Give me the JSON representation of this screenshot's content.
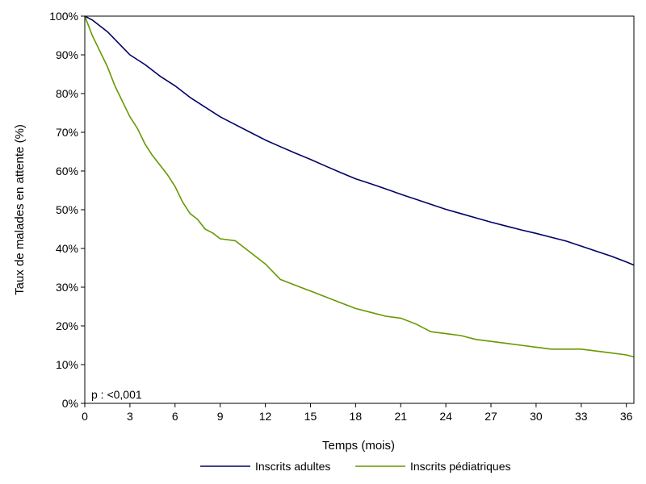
{
  "chart_data": {
    "type": "line",
    "title": "",
    "xlabel": "Temps (mois)",
    "ylabel": "Taux de malades en attente (%)",
    "xlim": [
      0,
      36.5
    ],
    "ylim": [
      0,
      100
    ],
    "xticks": [
      0,
      3,
      6,
      9,
      12,
      15,
      18,
      21,
      24,
      27,
      30,
      33,
      36
    ],
    "yticks": [
      0,
      10,
      20,
      30,
      40,
      50,
      60,
      70,
      80,
      90,
      100
    ],
    "xtick_labels": [
      "0",
      "3",
      "6",
      "9",
      "12",
      "15",
      "18",
      "21",
      "24",
      "27",
      "30",
      "33",
      "36"
    ],
    "ytick_labels": [
      "0%",
      "10%",
      "20%",
      "30%",
      "40%",
      "50%",
      "60%",
      "70%",
      "80%",
      "90%",
      "100%"
    ],
    "grid": false,
    "legend_position": "bottom",
    "annotation": "p : <0,001",
    "series": [
      {
        "name": "Inscrits adultes",
        "color": "#000066",
        "x": [
          0,
          0.5,
          1,
          1.5,
          2,
          2.5,
          3,
          4,
          5,
          6,
          7,
          8,
          9,
          10,
          11,
          12,
          13,
          14,
          15,
          16,
          17,
          18,
          19,
          20,
          21,
          22,
          23,
          24,
          25,
          26,
          27,
          28,
          29,
          30,
          31,
          32,
          33,
          34,
          35,
          36,
          36.5
        ],
        "y": [
          100,
          99,
          97.5,
          96,
          94,
          92,
          90,
          87.5,
          84.5,
          82,
          79,
          76.5,
          74,
          72,
          70,
          68,
          66.3,
          64.6,
          63,
          61.3,
          59.6,
          58,
          56.7,
          55.4,
          54,
          52.7,
          51.4,
          50.1,
          49,
          47.9,
          46.8,
          45.8,
          44.8,
          43.9,
          42.9,
          41.9,
          40.6,
          39.3,
          38,
          36.5,
          35.7
        ]
      },
      {
        "name": "Inscrits pédiatriques",
        "color": "#669900",
        "x": [
          0,
          0.2,
          0.5,
          1,
          1.5,
          2,
          2.5,
          3,
          3.5,
          4,
          4.5,
          5,
          5.5,
          6,
          6.5,
          7,
          7.5,
          8,
          8.5,
          9,
          10,
          11,
          12,
          13,
          14,
          15,
          16,
          17,
          18,
          19,
          20,
          21,
          22,
          23,
          24,
          25,
          26,
          27,
          28,
          29,
          30,
          31,
          32,
          33,
          34,
          35,
          36,
          36.5
        ],
        "y": [
          100,
          98,
          95,
          91,
          87,
          82,
          78,
          74,
          71,
          67,
          64,
          61.5,
          59,
          56,
          52,
          49,
          47.5,
          45,
          44,
          42.5,
          42,
          39,
          36,
          32,
          30.5,
          29,
          27.5,
          26,
          24.5,
          23.5,
          22.5,
          22,
          20.5,
          18.5,
          18,
          17.5,
          16.5,
          16,
          15.5,
          15,
          14.5,
          14,
          14,
          14,
          13.5,
          13,
          12.5,
          12
        ]
      }
    ]
  }
}
